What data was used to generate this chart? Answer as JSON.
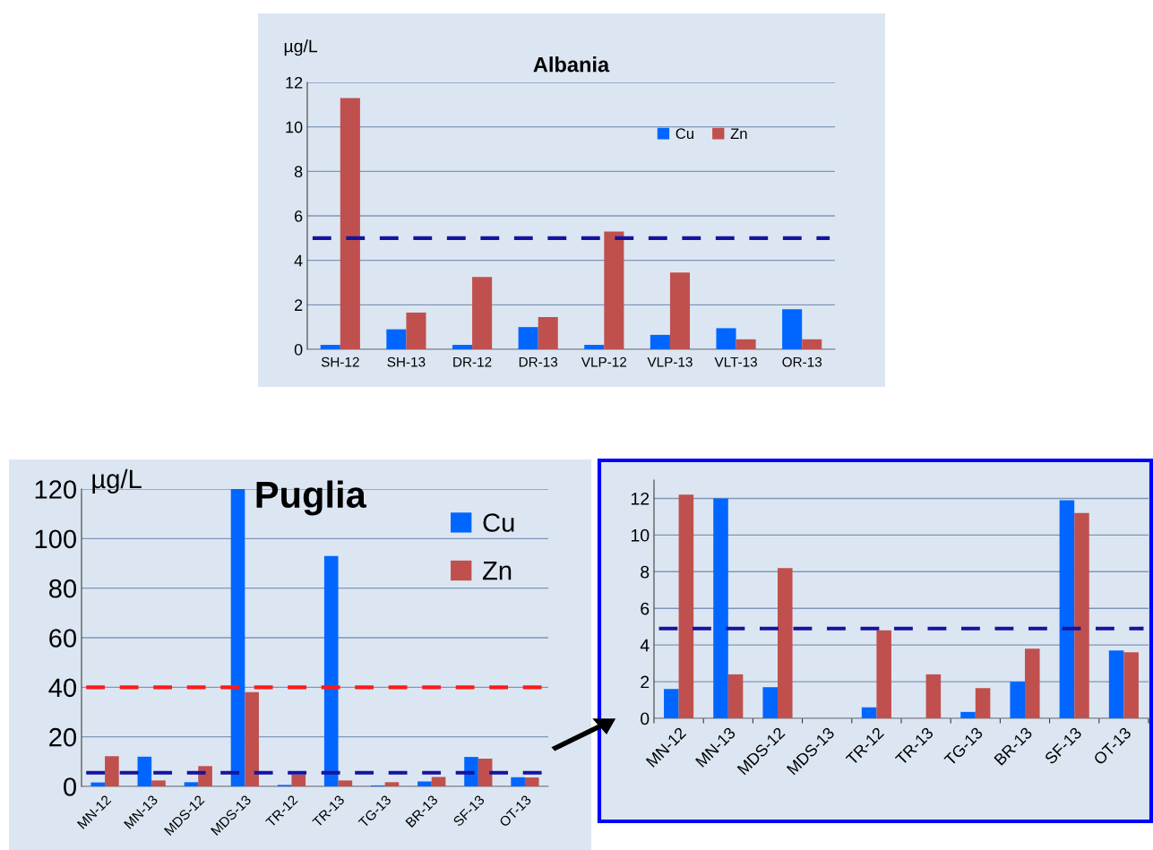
{
  "chart_data": [
    {
      "type": "bar",
      "title": "Albania",
      "ylabel": "µg/L",
      "categories": [
        "SH-12",
        "SH-13",
        "DR-12",
        "DR-13",
        "VLP-12",
        "VLP-13",
        "VLT-13",
        "OR-13"
      ],
      "series": [
        {
          "name": "Cu",
          "color": "#0066ff",
          "values": [
            0.2,
            0.9,
            0.2,
            1.0,
            0.2,
            0.65,
            0.95,
            1.8
          ]
        },
        {
          "name": "Zn",
          "color": "#c0504d",
          "values": [
            11.3,
            1.65,
            3.25,
            1.45,
            5.3,
            3.45,
            0.45,
            0.45
          ]
        }
      ],
      "ylim": [
        0,
        12
      ],
      "yticks": [
        0,
        2,
        4,
        6,
        8,
        10,
        12
      ],
      "grid": "y",
      "legend": "top right",
      "ref_lines": [
        {
          "axis": "y",
          "value": 5,
          "color": "#1414a0",
          "line_style": "dashed"
        }
      ]
    },
    {
      "type": "bar",
      "title": "Puglia",
      "ylabel": "µg/L",
      "categories": [
        "MN-12",
        "MN-13",
        "MDS-12",
        "MDS-13",
        "TR-12",
        "TR-13",
        "TG-13",
        "BR-13",
        "SF-13",
        "OT-13"
      ],
      "series": [
        {
          "name": "Cu",
          "color": "#0066ff",
          "values": [
            1.6,
            12,
            1.7,
            120,
            0.6,
            93,
            0.4,
            2,
            11.9,
            3.7
          ]
        },
        {
          "name": "Zn",
          "color": "#c0504d",
          "values": [
            12.2,
            2.4,
            8.2,
            38,
            4.8,
            2.4,
            1.7,
            3.8,
            11.2,
            3.6
          ]
        }
      ],
      "ylim": [
        0,
        120
      ],
      "yticks": [
        0,
        20,
        40,
        60,
        80,
        100,
        120
      ],
      "grid": "y",
      "legend": "top right",
      "ref_lines": [
        {
          "axis": "y",
          "value": 40,
          "color": "#ff1a1a",
          "line_style": "dashed"
        },
        {
          "axis": "y",
          "value": 5.5,
          "color": "#1414a0",
          "line_style": "dashed"
        }
      ]
    },
    {
      "type": "bar",
      "categories": [
        "MN-12",
        "MN-13",
        "MDS-12",
        "MDS-13",
        "TR-12",
        "TR-13",
        "TG-13",
        "BR-13",
        "SF-13",
        "OT-13"
      ],
      "series": [
        {
          "color": "#0066ff",
          "values": [
            1.6,
            12,
            1.7,
            null,
            0.6,
            null,
            0.35,
            2,
            11.9,
            3.7
          ]
        },
        {
          "color": "#c0504d",
          "values": [
            12.2,
            2.4,
            8.2,
            null,
            4.8,
            2.4,
            1.65,
            3.8,
            11.2,
            3.6
          ]
        }
      ],
      "ylim": [
        0,
        13
      ],
      "yticks": [
        0,
        2,
        4,
        6,
        8,
        10,
        12
      ],
      "grid": "y",
      "ref_lines": [
        {
          "axis": "y",
          "value": 4.9,
          "color": "#1414a0",
          "line_style": "dashed"
        }
      ]
    }
  ]
}
